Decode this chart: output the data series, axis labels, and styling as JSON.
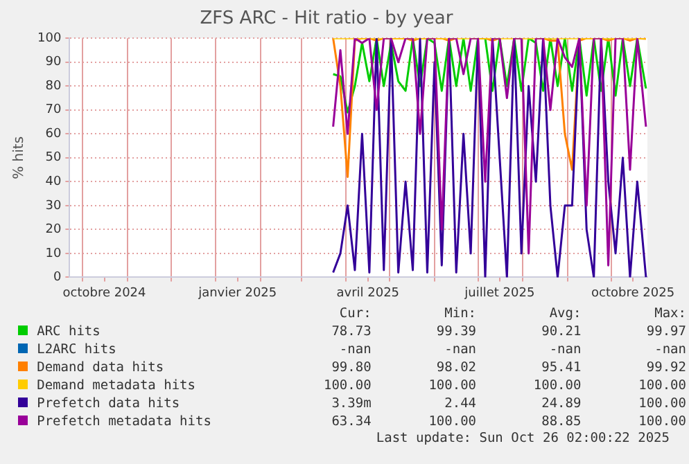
{
  "chart_data": {
    "type": "line",
    "title": "ZFS ARC - Hit ratio - by year",
    "ylabel": "% hits",
    "x": [
      "2025-03-23",
      "2025-03-28",
      "2025-04-02",
      "2025-04-07",
      "2025-04-12",
      "2025-04-17",
      "2025-04-22",
      "2025-04-27",
      "2025-05-02",
      "2025-05-07",
      "2025-05-12",
      "2025-05-17",
      "2025-05-22",
      "2025-05-27",
      "2025-06-01",
      "2025-06-06",
      "2025-06-11",
      "2025-06-16",
      "2025-06-21",
      "2025-06-26",
      "2025-07-01",
      "2025-07-06",
      "2025-07-11",
      "2025-07-16",
      "2025-07-21",
      "2025-07-26",
      "2025-07-31",
      "2025-08-05",
      "2025-08-10",
      "2025-08-15",
      "2025-08-20",
      "2025-08-25",
      "2025-08-30",
      "2025-09-04",
      "2025-09-09",
      "2025-09-14",
      "2025-09-19",
      "2025-09-24",
      "2025-09-29",
      "2025-10-04",
      "2025-10-09",
      "2025-10-14",
      "2025-10-19",
      "2025-10-25"
    ],
    "series": [
      {
        "name": "ARC hits",
        "color": "#00cc00",
        "values": [
          85,
          84,
          69,
          80,
          98,
          82,
          100,
          80,
          98,
          82,
          78,
          100,
          80,
          100,
          98,
          78,
          100,
          80,
          100,
          78,
          100,
          100,
          78,
          100,
          80,
          100,
          78,
          100,
          98,
          78,
          100,
          80,
          100,
          78,
          100,
          76,
          100,
          78,
          100,
          76,
          100,
          80,
          100,
          79
        ]
      },
      {
        "name": "L2ARC hits",
        "color": "#0066b3",
        "values": [
          null,
          null,
          null,
          null,
          null,
          null,
          null,
          null,
          null,
          null,
          null,
          null,
          null,
          null,
          null,
          null,
          null,
          null,
          null,
          null,
          null,
          null,
          null,
          null,
          null,
          null,
          null,
          null,
          null,
          null,
          null,
          null,
          null,
          null,
          null,
          null,
          null,
          null,
          null,
          null,
          null,
          null,
          null,
          null
        ]
      },
      {
        "name": "Demand data hits",
        "color": "#ff8000",
        "values": [
          100,
          80,
          42,
          99,
          100,
          100,
          99,
          100,
          100,
          100,
          100,
          99,
          100,
          100,
          100,
          100,
          99,
          100,
          null,
          100,
          100,
          100,
          99,
          100,
          null,
          100,
          100,
          null,
          100,
          100,
          99,
          99,
          60,
          45,
          99,
          100,
          100,
          100,
          99,
          100,
          100,
          99,
          100,
          99.8
        ]
      },
      {
        "name": "Demand metadata hits",
        "color": "#ffcc00",
        "values": [
          100,
          100,
          100,
          100,
          100,
          100,
          100,
          100,
          100,
          100,
          100,
          100,
          100,
          100,
          100,
          100,
          100,
          100,
          100,
          100,
          100,
          100,
          100,
          100,
          100,
          100,
          100,
          100,
          100,
          100,
          100,
          100,
          100,
          100,
          100,
          100,
          100,
          100,
          100,
          100,
          100,
          100,
          100,
          100
        ]
      },
      {
        "name": "Prefetch data hits",
        "color": "#330099",
        "values": [
          2,
          10,
          30,
          3,
          60,
          2,
          100,
          3,
          100,
          2,
          40,
          3,
          100,
          2,
          90,
          5,
          100,
          2,
          60,
          10,
          100,
          0,
          100,
          50,
          0,
          100,
          10,
          80,
          40,
          100,
          30,
          0,
          30,
          30,
          100,
          20,
          0,
          100,
          40,
          10,
          50,
          0,
          40,
          0
        ]
      },
      {
        "name": "Prefetch metadata hits",
        "color": "#990099",
        "values": [
          63,
          95,
          60,
          100,
          98,
          100,
          70,
          100,
          100,
          90,
          100,
          100,
          60,
          100,
          100,
          20,
          100,
          100,
          85,
          100,
          100,
          40,
          100,
          100,
          75,
          100,
          100,
          10,
          100,
          100,
          70,
          100,
          92,
          88,
          100,
          30,
          100,
          100,
          5,
          100,
          100,
          45,
          100,
          63
        ]
      }
    ],
    "xlim": [
      "2024-09-22",
      "2025-10-26"
    ],
    "xticks": [
      {
        "value": "2024-10-01",
        "label": null
      },
      {
        "value": "2024-10-16",
        "label": "octobre 2024"
      },
      {
        "value": "2024-11-01",
        "label": null
      },
      {
        "value": "2024-12-01",
        "label": null
      },
      {
        "value": "2025-01-01",
        "label": null
      },
      {
        "value": "2025-01-16",
        "label": "janvier 2025"
      },
      {
        "value": "2025-02-01",
        "label": null
      },
      {
        "value": "2025-03-01",
        "label": null
      },
      {
        "value": "2025-04-01",
        "label": null
      },
      {
        "value": "2025-04-16",
        "label": "avril 2025"
      },
      {
        "value": "2025-05-01",
        "label": null
      },
      {
        "value": "2025-06-01",
        "label": null
      },
      {
        "value": "2025-07-01",
        "label": null
      },
      {
        "value": "2025-07-16",
        "label": "juillet 2025"
      },
      {
        "value": "2025-08-01",
        "label": null
      },
      {
        "value": "2025-09-01",
        "label": null
      },
      {
        "value": "2025-10-01",
        "label": null
      },
      {
        "value": "2025-10-16",
        "label": "octobre 2025"
      }
    ],
    "ylim": [
      0,
      100
    ],
    "yticks": [
      0,
      10,
      20,
      30,
      40,
      50,
      60,
      70,
      80,
      90,
      100
    ],
    "grid": true,
    "legend": "bottom",
    "line_style": "solid",
    "annotations": [
      "Cur:",
      "Min:",
      "Avg:",
      "Max:",
      "78.73",
      "99.39",
      "90.21",
      "99.97",
      "-nan",
      "-nan",
      "-nan",
      "-nan",
      "99.80",
      "98.02",
      "95.41",
      "99.92",
      "100.00",
      "100.00",
      "100.00",
      "100.00",
      "3.39m",
      "2.44",
      "24.89",
      "100.00",
      "63.34",
      "100.00",
      "88.85",
      "100.00",
      "Last update: Sun Oct 26 02:00:22 2025"
    ]
  }
}
